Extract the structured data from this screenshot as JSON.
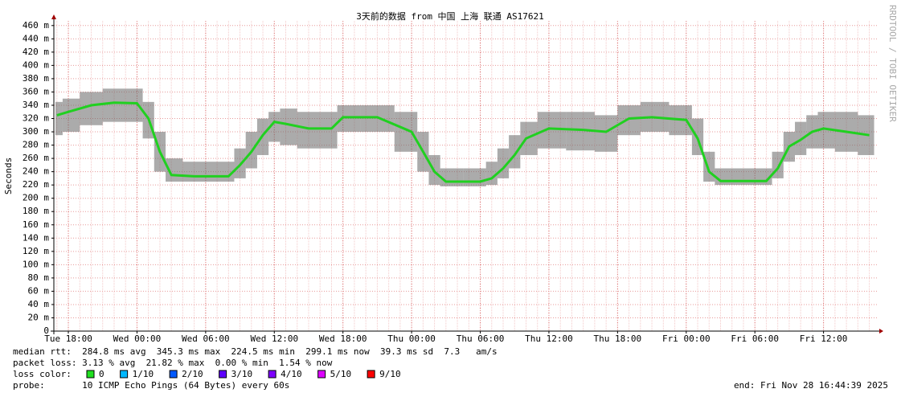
{
  "chart_data": {
    "type": "smokeping",
    "title": "3天前的数据 from 中国 上海 联通 AS17621",
    "ylabel": "Seconds",
    "side_label": "RRDTOOL / TOBI OETIKER",
    "xlim": [
      "Tue 16:44",
      "Fri 16:44"
    ],
    "xticks": [
      "Tue 18:00",
      "Wed 00:00",
      "Wed 06:00",
      "Wed 12:00",
      "Wed 18:00",
      "Thu 00:00",
      "Thu 06:00",
      "Thu 12:00",
      "Thu 18:00",
      "Fri 00:00",
      "Fri 06:00",
      "Fri 12:00"
    ],
    "ylim": [
      0,
      467
    ],
    "yticks": [
      0,
      {
        "value": 20,
        "label": "20 m"
      },
      {
        "value": 40,
        "label": "40 m"
      },
      {
        "value": 60,
        "label": "60 m"
      },
      {
        "value": 80,
        "label": "80 m"
      },
      {
        "value": 100,
        "label": "100 m"
      },
      {
        "value": 120,
        "label": "120 m"
      },
      {
        "value": 140,
        "label": "140 m"
      },
      {
        "value": 160,
        "label": "160 m"
      },
      {
        "value": 180,
        "label": "180 m"
      },
      {
        "value": 200,
        "label": "200 m"
      },
      {
        "value": 220,
        "label": "220 m"
      },
      {
        "value": 240,
        "label": "240 m"
      },
      {
        "value": 260,
        "label": "260 m"
      },
      {
        "value": 280,
        "label": "280 m"
      },
      {
        "value": 300,
        "label": "300 m"
      },
      {
        "value": 320,
        "label": "320 m"
      },
      {
        "value": 340,
        "label": "340 m"
      },
      {
        "value": 360,
        "label": "360 m"
      },
      {
        "value": 380,
        "label": "380 m"
      },
      {
        "value": 400,
        "label": "400 m"
      },
      {
        "value": 420,
        "label": "420 m"
      },
      {
        "value": 440,
        "label": "440 m"
      },
      {
        "value": 460,
        "label": "460 m"
      }
    ],
    "grid": true,
    "x": [
      "Tue 17:00",
      "Tue 18:00",
      "Tue 20:00",
      "Tue 22:00",
      "Wed 00:00",
      "Wed 01:00",
      "Wed 02:00",
      "Wed 03:00",
      "Wed 05:00",
      "Wed 08:00",
      "Wed 09:00",
      "Wed 10:00",
      "Wed 11:00",
      "Wed 12:00",
      "Wed 13:00",
      "Wed 15:00",
      "Wed 17:00",
      "Wed 18:00",
      "Wed 21:00",
      "Thu 00:00",
      "Thu 01:00",
      "Thu 02:00",
      "Thu 03:00",
      "Thu 06:00",
      "Thu 07:00",
      "Thu 08:00",
      "Thu 09:00",
      "Thu 10:00",
      "Thu 12:00",
      "Thu 15:00",
      "Thu 17:00",
      "Thu 19:00",
      "Thu 21:00",
      "Fri 00:00",
      "Fri 01:00",
      "Fri 02:00",
      "Fri 03:00",
      "Fri 07:00",
      "Fri 08:00",
      "Fri 09:00",
      "Fri 10:00",
      "Fri 11:00",
      "Fri 12:00",
      "Fri 14:00",
      "Fri 16:00"
    ],
    "median": {
      "color": "#20d020",
      "values": [
        325,
        330,
        340,
        344,
        343,
        320,
        270,
        235,
        233,
        233,
        250,
        270,
        295,
        315,
        312,
        305,
        305,
        322,
        322,
        300,
        270,
        240,
        225,
        225,
        230,
        245,
        265,
        290,
        305,
        303,
        300,
        320,
        322,
        318,
        290,
        240,
        226,
        226,
        245,
        278,
        288,
        300,
        305,
        300,
        295
      ]
    },
    "smoke": {
      "color": "#666666",
      "lower": [
        295,
        300,
        310,
        315,
        315,
        290,
        240,
        225,
        225,
        225,
        230,
        245,
        265,
        285,
        280,
        275,
        275,
        300,
        300,
        270,
        240,
        220,
        218,
        218,
        220,
        230,
        245,
        265,
        275,
        272,
        270,
        295,
        300,
        295,
        265,
        225,
        220,
        220,
        230,
        255,
        265,
        275,
        275,
        270,
        265
      ],
      "upper": [
        345,
        350,
        360,
        365,
        365,
        345,
        300,
        260,
        255,
        255,
        275,
        300,
        320,
        330,
        335,
        330,
        330,
        340,
        340,
        330,
        300,
        265,
        245,
        245,
        255,
        275,
        295,
        315,
        330,
        330,
        325,
        340,
        345,
        340,
        320,
        270,
        245,
        245,
        270,
        300,
        315,
        325,
        330,
        330,
        325
      ]
    },
    "stats": [
      "median rtt:  284.8 ms avg  345.3 ms max  224.5 ms min  299.1 ms now  39.3 ms sd  7.3   am/s",
      "packet loss: 3.13 % avg  21.82 % max  0.00 % min  1.54 % now"
    ],
    "loss_color_title": "loss color:",
    "loss_colors": [
      {
        "label": "0",
        "color": "#20e020"
      },
      {
        "label": "1/10",
        "color": "#00b8ff"
      },
      {
        "label": "2/10",
        "color": "#0059ff"
      },
      {
        "label": "3/10",
        "color": "#5e00ff"
      },
      {
        "label": "4/10",
        "color": "#7e00ff"
      },
      {
        "label": "5/10",
        "color": "#dd00ff"
      },
      {
        "label": "9/10",
        "color": "#ff0000"
      }
    ],
    "probe": "probe:       10 ICMP Echo Pings (64 Bytes) every 60s",
    "end": "end: Fri Nov 28 16:44:39 2025"
  }
}
